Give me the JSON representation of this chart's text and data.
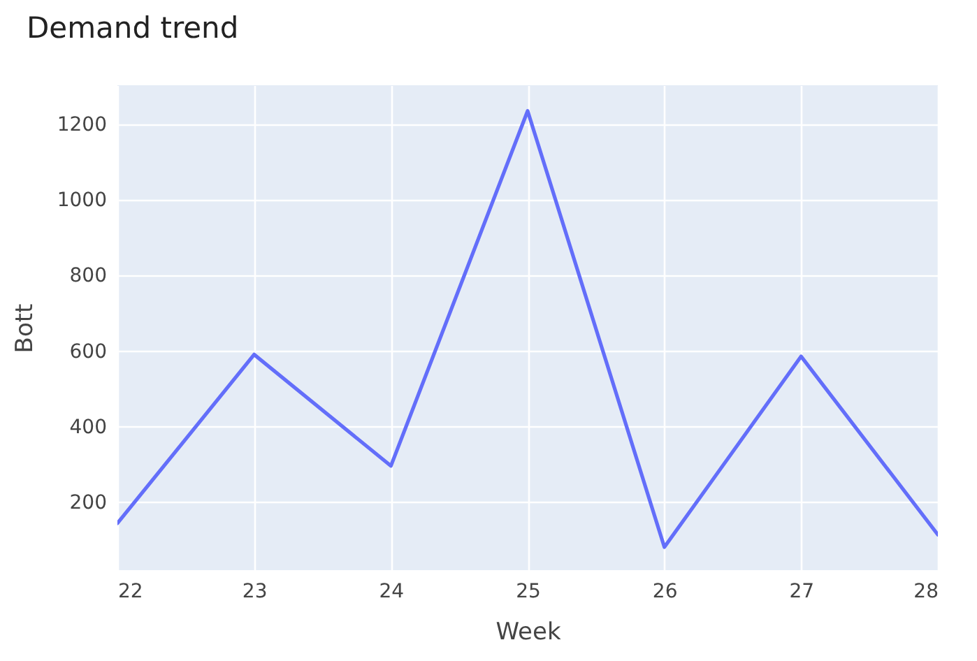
{
  "chart_data": {
    "type": "line",
    "title": "Demand trend",
    "xlabel": "Week",
    "ylabel": "Bott",
    "x": [
      22,
      23,
      24,
      25,
      26,
      27,
      28
    ],
    "series": [
      {
        "color": "#636efa",
        "values": [
          144,
          591,
          296,
          1236,
          81,
          586,
          114
        ]
      }
    ],
    "xlim": [
      22,
      28
    ],
    "xticks": [
      22,
      23,
      24,
      25,
      26,
      27,
      28
    ],
    "ylim": [
      20,
      1304
    ],
    "yticks": [
      200,
      400,
      600,
      800,
      1000,
      1200
    ],
    "grid": true,
    "legend": false,
    "marker": "none",
    "line_style": "solid"
  }
}
